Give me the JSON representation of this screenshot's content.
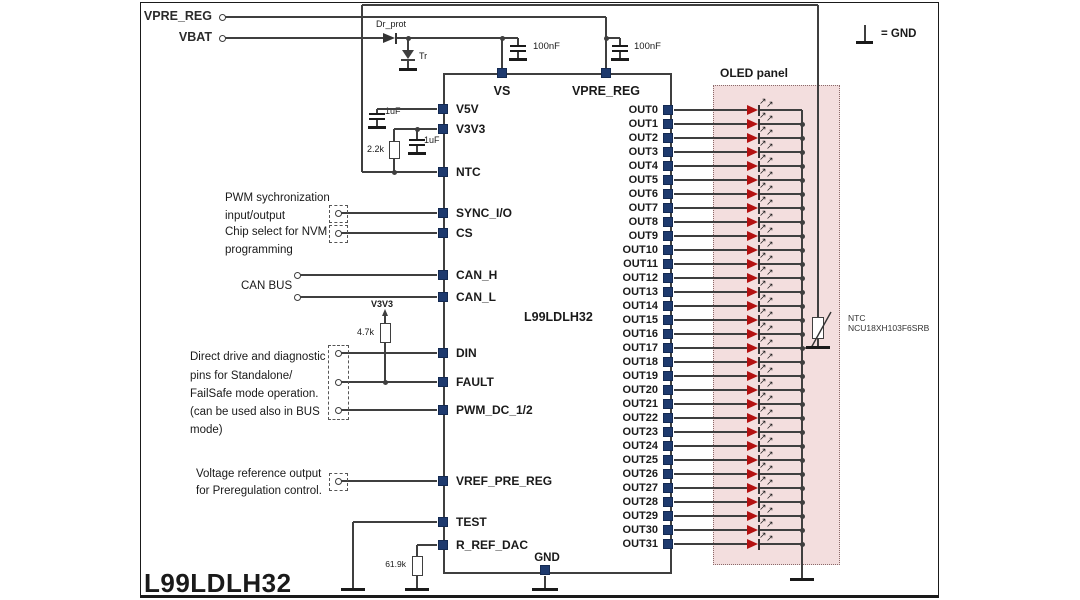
{
  "title": "L99LDLH32",
  "legend": {
    "gnd_label": "= GND"
  },
  "left_inputs": [
    "VPRE_REG",
    "VBAT"
  ],
  "ic": {
    "label": "L99LDLH32",
    "top_pins": [
      "VS",
      "VPRE_REG"
    ],
    "left_pins": [
      "V5V",
      "V3V3",
      "NTC",
      "SYNC_I/O",
      "CS",
      "CAN_H",
      "CAN_L",
      "DIN",
      "FAULT",
      "PWM_DC_1/2",
      "VREF_PRE_REG",
      "TEST",
      "R_REF_DAC"
    ],
    "bottom_pin": "GND",
    "right_pins": [
      "OUT0",
      "OUT1",
      "OUT2",
      "OUT3",
      "OUT4",
      "OUT5",
      "OUT6",
      "OUT7",
      "OUT8",
      "OUT9",
      "OUT10",
      "OUT11",
      "OUT12",
      "OUT13",
      "OUT14",
      "OUT15",
      "OUT16",
      "OUT17",
      "OUT18",
      "OUT19",
      "OUT20",
      "OUT21",
      "OUT22",
      "OUT23",
      "OUT24",
      "OUT25",
      "OUT26",
      "OUT27",
      "OUT28",
      "OUT29",
      "OUT30",
      "OUT31"
    ]
  },
  "components": {
    "protection_diode": "Dr_prot",
    "transient_suppressor": "Tr",
    "vs_cap": "100nF",
    "vpre_cap": "100nF",
    "v5v_cap": "1uF",
    "v3v3_cap": "1uF",
    "ntc_divider_resistor": "2.2k",
    "fault_pullup_rail": "V3V3",
    "fault_pullup_resistor": "4.7k",
    "rref_resistor": "61.9k",
    "ntc_name": "NTC",
    "ntc_part": "NCU18XH103F6SRB"
  },
  "oled_panel": {
    "label": "OLED panel",
    "led_count": 32
  },
  "annotations": {
    "sync": [
      "PWM sychronization",
      "input/output"
    ],
    "cs": [
      "Chip select for NVM",
      "programming"
    ],
    "can": "CAN BUS",
    "direct_drive": [
      "Direct drive and diagnostic",
      "pins for Standalone/",
      "FailSafe mode operation.",
      "(can be used also in BUS",
      "mode)"
    ],
    "vref": [
      "Voltage reference output",
      "for Preregulation control."
    ]
  },
  "colors": {
    "wire": "#3f3f3f",
    "pin": "#1e3a6e",
    "led": "#b31111",
    "panel_fill": "#f3dede",
    "panel_border": "#8a6a6a",
    "text": "#1a1a1a"
  }
}
